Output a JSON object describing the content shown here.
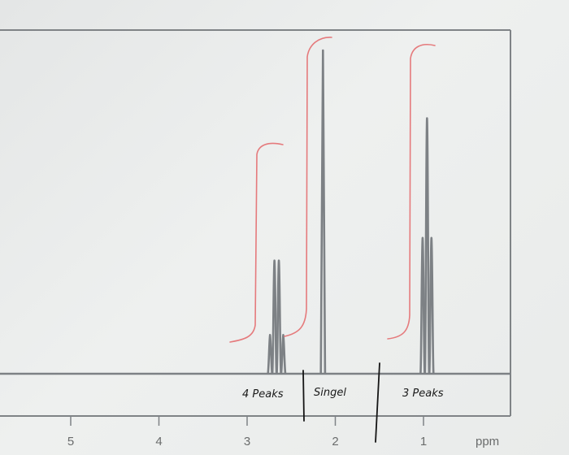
{
  "chart_data": {
    "type": "line",
    "title": "",
    "xlabel": "",
    "ylabel": "",
    "x_unit": "ppm",
    "xlim": [
      5.7,
      0.9
    ],
    "ylim": [
      0,
      100
    ],
    "x_reversed": true,
    "x_ticks": [
      5,
      4,
      3,
      2,
      1
    ],
    "grid": false,
    "series": [
      {
        "values": [
          {
            "x": 2.74,
            "y": 12
          },
          {
            "x": 2.69,
            "y": 35
          },
          {
            "x": 2.64,
            "y": 35
          },
          {
            "x": 2.59,
            "y": 12
          },
          {
            "x": 2.14,
            "y": 100
          },
          {
            "x": 1.01,
            "y": 42
          },
          {
            "x": 0.96,
            "y": 79
          },
          {
            "x": 0.91,
            "y": 42
          }
        ]
      }
    ],
    "annotations": [
      {
        "text": "4 Peaks",
        "x": 2.7
      },
      {
        "text": "Singel",
        "x": 1.95
      },
      {
        "text": "3 Peaks",
        "x": 0.97
      }
    ],
    "colors": {
      "spectrum": "#7d8185",
      "frame": "#7f8386",
      "integral": "#e57a7c",
      "ink": "#151515"
    }
  }
}
